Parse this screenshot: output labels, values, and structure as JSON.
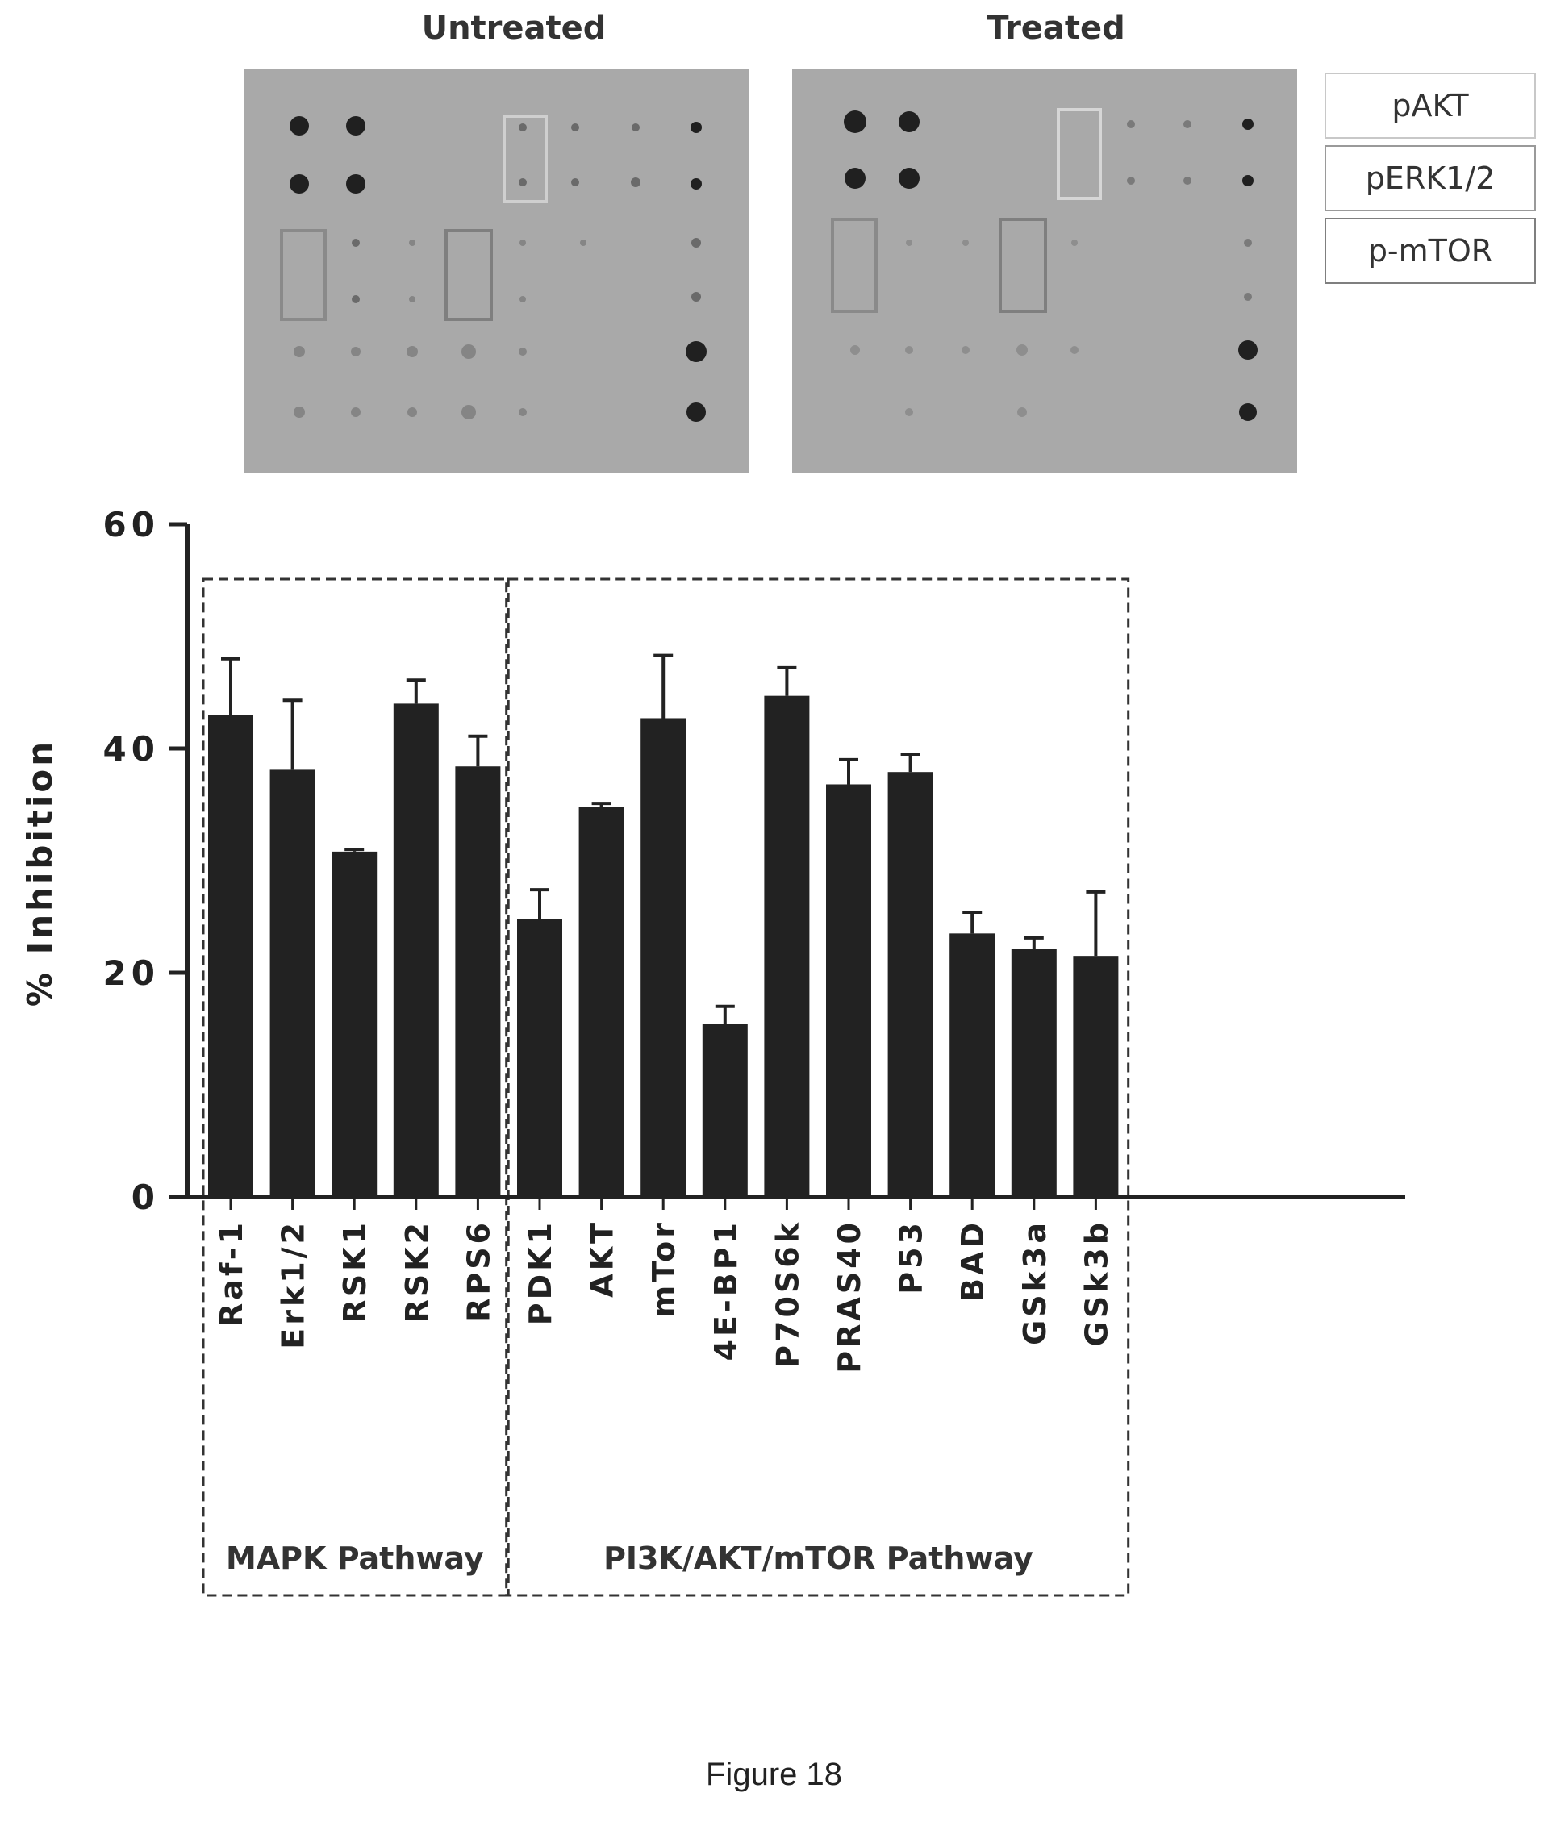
{
  "blots": {
    "untreated_label": "Untreated",
    "treated_label": "Treated"
  },
  "legend": {
    "items": [
      {
        "label": "pAKT",
        "border": "#c8c8c8"
      },
      {
        "label": "pERK1/2",
        "border": "#9a9a9a"
      },
      {
        "label": "p-mTOR",
        "border": "#7f7f7f"
      }
    ]
  },
  "chart_data": {
    "type": "bar",
    "ylabel": "% Inhibition",
    "ylim": [
      0,
      60
    ],
    "yticks": [
      0,
      20,
      40,
      60
    ],
    "categories": [
      "Raf-1",
      "Erk1/2",
      "RSK1",
      "RSK2",
      "RPS6",
      "PDK1",
      "AKT",
      "mTor",
      "4E-BP1",
      "P70S6k",
      "PRAS40",
      "P53",
      "BAD",
      "GSk3a",
      "GSk3b"
    ],
    "values": [
      43.0,
      38.1,
      30.8,
      44.0,
      38.4,
      24.8,
      34.8,
      42.7,
      15.4,
      44.7,
      36.8,
      37.9,
      23.5,
      22.1,
      21.5
    ],
    "errors": [
      5.0,
      6.2,
      0.2,
      2.1,
      2.7,
      2.6,
      0.3,
      5.6,
      1.6,
      2.5,
      2.2,
      1.6,
      1.9,
      1.0,
      5.7
    ],
    "bar_color": "#222222",
    "groups": [
      {
        "label": "MAPK Pathway",
        "start": 0,
        "end": 4
      },
      {
        "label": "PI3K/AKT/mTOR Pathway",
        "start": 5,
        "end": 14
      }
    ]
  },
  "caption": "Figure 18"
}
